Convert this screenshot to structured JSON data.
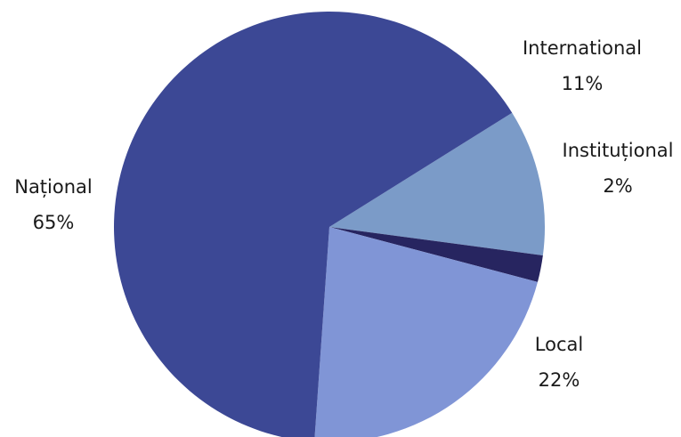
{
  "chart_data": {
    "type": "pie",
    "title": "",
    "start_angle_deg": 58,
    "direction": "clockwise",
    "slices": [
      {
        "name": "International",
        "value": 11,
        "label": "11%",
        "color": "#7b9bc8"
      },
      {
        "name": "Instituțional",
        "value": 2,
        "label": "2%",
        "color": "#272560"
      },
      {
        "name": "Local",
        "value": 22,
        "label": "22%",
        "color": "#8095d6"
      },
      {
        "name": "Național",
        "value": 65,
        "label": "65%",
        "color": "#3c4895"
      }
    ],
    "legend": "none"
  }
}
